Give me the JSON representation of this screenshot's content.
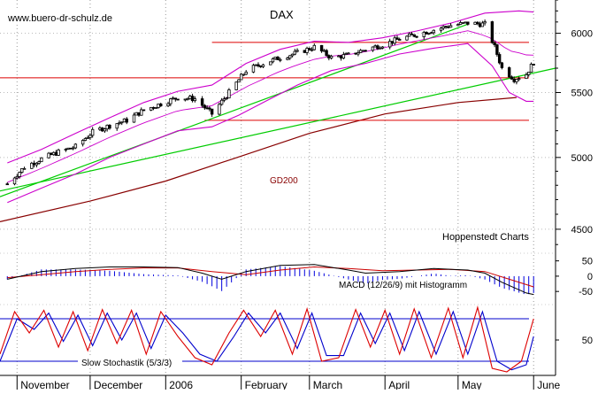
{
  "chart_data": {
    "type": "line",
    "title": "DAX",
    "watermark": "www.buero-dr-schulz.de",
    "source": "Hoppenstedt Charts",
    "colors": {
      "price": "#000000",
      "bollinger": "#cc00cc",
      "trendline": "#00cc00",
      "horizontal_levels": "#dd0000",
      "gd200": "#880000",
      "macd_histogram": "#0000dd",
      "macd_line": "#000000",
      "macd_signal": "#cc0000",
      "stoch_k": "#dd0000",
      "stoch_d": "#0000cc",
      "stoch_bands": "#0000cc"
    },
    "x_axis": {
      "labels": [
        "November",
        "December",
        "2006",
        "February",
        "March",
        "April",
        "May",
        "June"
      ],
      "start_date": "2005-10-25",
      "end_date": "2006-06-10"
    },
    "price_panel": {
      "y_ticks": [
        4500,
        5000,
        5500,
        6000
      ],
      "ylim": [
        4350,
        6300
      ],
      "scale": "log",
      "gd200_label": "GD200",
      "horizontal_levels": [
        5920,
        5620,
        5280
      ],
      "price_series": [
        [
          "2005-10-28",
          4810
        ],
        [
          "2005-11-04",
          4930
        ],
        [
          "2005-11-11",
          4990
        ],
        [
          "2005-11-18",
          5040
        ],
        [
          "2005-11-25",
          5080
        ],
        [
          "2005-12-02",
          5190
        ],
        [
          "2005-12-09",
          5240
        ],
        [
          "2005-12-16",
          5280
        ],
        [
          "2005-12-23",
          5360
        ],
        [
          "2005-12-30",
          5410
        ],
        [
          "2006-01-06",
          5460
        ],
        [
          "2006-01-13",
          5450
        ],
        [
          "2006-01-20",
          5330
        ],
        [
          "2006-01-27",
          5500
        ],
        [
          "2006-02-03",
          5680
        ],
        [
          "2006-02-10",
          5740
        ],
        [
          "2006-02-17",
          5790
        ],
        [
          "2006-02-24",
          5830
        ],
        [
          "2006-03-03",
          5880
        ],
        [
          "2006-03-10",
          5790
        ],
        [
          "2006-03-17",
          5810
        ],
        [
          "2006-03-24",
          5860
        ],
        [
          "2006-03-31",
          5900
        ],
        [
          "2006-04-07",
          5950
        ],
        [
          "2006-04-14",
          5990
        ],
        [
          "2006-04-21",
          6030
        ],
        [
          "2006-04-28",
          6070
        ],
        [
          "2006-05-05",
          6090
        ],
        [
          "2006-05-12",
          6080
        ],
        [
          "2006-05-16",
          5880
        ],
        [
          "2006-05-19",
          5700
        ],
        [
          "2006-05-24",
          5610
        ],
        [
          "2006-05-29",
          5650
        ],
        [
          "2006-06-01",
          5750
        ]
      ],
      "bollinger_upper": [
        [
          "2005-10-28",
          4960
        ],
        [
          "2005-11-11",
          5060
        ],
        [
          "2005-11-25",
          5180
        ],
        [
          "2005-12-09",
          5300
        ],
        [
          "2005-12-23",
          5420
        ],
        [
          "2006-01-06",
          5510
        ],
        [
          "2006-01-20",
          5560
        ],
        [
          "2006-02-03",
          5740
        ],
        [
          "2006-02-17",
          5860
        ],
        [
          "2006-03-03",
          5930
        ],
        [
          "2006-03-17",
          5920
        ],
        [
          "2006-03-31",
          5960
        ],
        [
          "2006-04-14",
          6020
        ],
        [
          "2006-04-28",
          6090
        ],
        [
          "2006-05-12",
          6180
        ],
        [
          "2006-05-26",
          6200
        ],
        [
          "2006-06-01",
          6190
        ]
      ],
      "bollinger_lower": [
        [
          "2005-10-28",
          4680
        ],
        [
          "2005-11-11",
          4780
        ],
        [
          "2005-11-25",
          4880
        ],
        [
          "2005-12-09",
          5000
        ],
        [
          "2005-12-23",
          5100
        ],
        [
          "2006-01-06",
          5200
        ],
        [
          "2006-01-20",
          5230
        ],
        [
          "2006-01-31",
          5320
        ],
        [
          "2006-02-10",
          5420
        ],
        [
          "2006-02-24",
          5560
        ],
        [
          "2006-03-10",
          5680
        ],
        [
          "2006-03-24",
          5740
        ],
        [
          "2006-04-07",
          5820
        ],
        [
          "2006-04-21",
          5870
        ],
        [
          "2006-05-05",
          5910
        ],
        [
          "2006-05-15",
          5720
        ],
        [
          "2006-05-22",
          5500
        ],
        [
          "2006-05-29",
          5430
        ],
        [
          "2006-06-01",
          5430
        ]
      ],
      "gd200": [
        [
          "2005-10-25",
          4550
        ],
        [
          "2005-12-01",
          4690
        ],
        [
          "2006-01-01",
          4830
        ],
        [
          "2006-02-01",
          5010
        ],
        [
          "2006-03-01",
          5180
        ],
        [
          "2006-04-01",
          5330
        ],
        [
          "2006-05-01",
          5420
        ],
        [
          "2006-05-25",
          5460
        ]
      ],
      "trendlines": [
        [
          [
            "2005-10-25",
            4720
          ],
          [
            "2006-05-05",
            6080
          ]
        ],
        [
          [
            "2005-10-25",
            4760
          ],
          [
            "2006-06-10",
            5700
          ]
        ]
      ]
    },
    "macd_panel": {
      "label": "MACD (12/26/9) mit Histogramm",
      "y_ticks": [
        50,
        0,
        -50
      ],
      "ylim": [
        -90,
        75
      ],
      "macd_line": [
        [
          "2005-10-28",
          -10
        ],
        [
          "2005-11-11",
          15
        ],
        [
          "2005-11-25",
          25
        ],
        [
          "2005-12-09",
          30
        ],
        [
          "2005-12-23",
          30
        ],
        [
          "2006-01-06",
          28
        ],
        [
          "2006-01-16",
          10
        ],
        [
          "2006-01-24",
          -10
        ],
        [
          "2006-02-03",
          15
        ],
        [
          "2006-02-17",
          35
        ],
        [
          "2006-03-03",
          38
        ],
        [
          "2006-03-17",
          20
        ],
        [
          "2006-03-24",
          10
        ],
        [
          "2006-04-07",
          15
        ],
        [
          "2006-04-21",
          25
        ],
        [
          "2006-05-05",
          20
        ],
        [
          "2006-05-12",
          10
        ],
        [
          "2006-05-19",
          -20
        ],
        [
          "2006-05-29",
          -55
        ],
        [
          "2006-06-01",
          -60
        ]
      ],
      "signal_line": [
        [
          "2005-10-28",
          -5
        ],
        [
          "2005-11-11",
          5
        ],
        [
          "2005-11-25",
          15
        ],
        [
          "2005-12-09",
          22
        ],
        [
          "2005-12-23",
          27
        ],
        [
          "2006-01-06",
          27
        ],
        [
          "2006-01-20",
          15
        ],
        [
          "2006-02-03",
          5
        ],
        [
          "2006-02-17",
          20
        ],
        [
          "2006-03-03",
          30
        ],
        [
          "2006-03-17",
          25
        ],
        [
          "2006-03-31",
          18
        ],
        [
          "2006-04-14",
          20
        ],
        [
          "2006-04-28",
          22
        ],
        [
          "2006-05-12",
          15
        ],
        [
          "2006-05-22",
          -10
        ],
        [
          "2006-06-01",
          -35
        ]
      ]
    },
    "stochastic_panel": {
      "label": "Slow Stochastik (5/3/3)",
      "y_ticks": [
        50
      ],
      "ylim": [
        0,
        100
      ],
      "bands": [
        80,
        20
      ],
      "k_line": [
        [
          "2005-10-25",
          30
        ],
        [
          "2005-10-31",
          90
        ],
        [
          "2005-11-06",
          60
        ],
        [
          "2005-11-12",
          92
        ],
        [
          "2005-11-18",
          40
        ],
        [
          "2005-11-24",
          90
        ],
        [
          "2005-11-30",
          35
        ],
        [
          "2005-12-06",
          93
        ],
        [
          "2005-12-12",
          45
        ],
        [
          "2005-12-18",
          92
        ],
        [
          "2005-12-24",
          30
        ],
        [
          "2005-12-30",
          90
        ],
        [
          "2006-01-06",
          55
        ],
        [
          "2006-01-13",
          25
        ],
        [
          "2006-01-20",
          15
        ],
        [
          "2006-01-27",
          60
        ],
        [
          "2006-02-02",
          92
        ],
        [
          "2006-02-09",
          55
        ],
        [
          "2006-02-15",
          92
        ],
        [
          "2006-02-22",
          30
        ],
        [
          "2006-02-28",
          94
        ],
        [
          "2006-03-06",
          20
        ],
        [
          "2006-03-13",
          25
        ],
        [
          "2006-03-20",
          93
        ],
        [
          "2006-03-26",
          40
        ],
        [
          "2006-04-01",
          92
        ],
        [
          "2006-04-07",
          30
        ],
        [
          "2006-04-13",
          94
        ],
        [
          "2006-04-20",
          25
        ],
        [
          "2006-04-27",
          95
        ],
        [
          "2006-05-03",
          25
        ],
        [
          "2006-05-09",
          96
        ],
        [
          "2006-05-15",
          10
        ],
        [
          "2006-05-21",
          5
        ],
        [
          "2006-05-27",
          20
        ],
        [
          "2006-06-01",
          80
        ]
      ],
      "d_line": [
        [
          "2005-10-25",
          20
        ],
        [
          "2005-11-01",
          80
        ],
        [
          "2005-11-08",
          65
        ],
        [
          "2005-11-14",
          88
        ],
        [
          "2005-11-20",
          48
        ],
        [
          "2005-11-26",
          85
        ],
        [
          "2005-12-02",
          42
        ],
        [
          "2005-12-08",
          88
        ],
        [
          "2005-12-14",
          50
        ],
        [
          "2005-12-20",
          88
        ],
        [
          "2005-12-26",
          38
        ],
        [
          "2006-01-01",
          85
        ],
        [
          "2006-01-08",
          60
        ],
        [
          "2006-01-15",
          30
        ],
        [
          "2006-01-22",
          20
        ],
        [
          "2006-01-29",
          55
        ],
        [
          "2006-02-04",
          88
        ],
        [
          "2006-02-11",
          60
        ],
        [
          "2006-02-17",
          88
        ],
        [
          "2006-02-24",
          38
        ],
        [
          "2006-03-02",
          88
        ],
        [
          "2006-03-08",
          28
        ],
        [
          "2006-03-15",
          28
        ],
        [
          "2006-03-22",
          88
        ],
        [
          "2006-03-28",
          45
        ],
        [
          "2006-04-03",
          88
        ],
        [
          "2006-04-09",
          35
        ],
        [
          "2006-04-15",
          90
        ],
        [
          "2006-04-22",
          30
        ],
        [
          "2006-04-29",
          90
        ],
        [
          "2006-05-05",
          30
        ],
        [
          "2006-05-11",
          90
        ],
        [
          "2006-05-17",
          20
        ],
        [
          "2006-05-23",
          8
        ],
        [
          "2006-05-29",
          15
        ],
        [
          "2006-06-01",
          55
        ]
      ]
    }
  }
}
